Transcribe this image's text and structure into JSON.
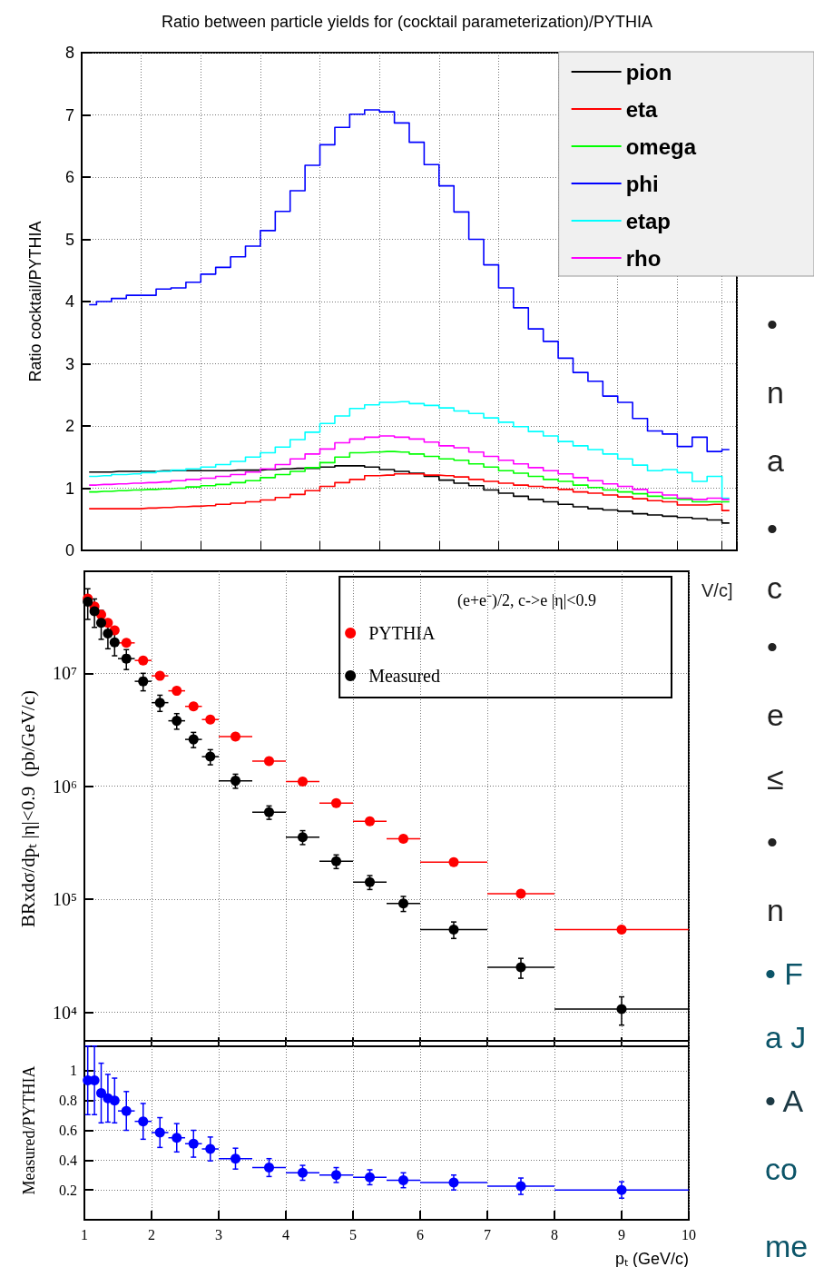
{
  "chart_data": [
    {
      "type": "step",
      "title": "Ratio between particle yields for (cocktail parameterization)/PYTHIA",
      "ylabel": "Ratio cocktail/PYTHIA",
      "categories": [
        null,
        null,
        null,
        null,
        null,
        null,
        null,
        null,
        null,
        null,
        null,
        null,
        null,
        null,
        null,
        null,
        null,
        null,
        null,
        null,
        null,
        null,
        null,
        null,
        null,
        null,
        null,
        null,
        null,
        null,
        null,
        null,
        null,
        null,
        null,
        null,
        null,
        null,
        null,
        null,
        null,
        null,
        null,
        null
      ],
      "ylim": [
        0,
        8
      ],
      "yticks": [
        0,
        1,
        2,
        3,
        4,
        5,
        6,
        7,
        8
      ],
      "grid": true,
      "legend": "top right",
      "tick_labels": "y",
      "marker": "none",
      "series": [
        {
          "name": "pion",
          "color": "#000000",
          "values": [
            1.26,
            1.26,
            1.27,
            1.27,
            1.27,
            1.28,
            1.28,
            1.28,
            1.28,
            1.28,
            1.29,
            1.29,
            1.3,
            1.31,
            1.32,
            1.32,
            1.34,
            1.36,
            1.36,
            1.34,
            1.3,
            1.27,
            1.24,
            1.19,
            1.13,
            1.08,
            1.04,
            0.97,
            0.92,
            0.87,
            0.82,
            0.78,
            0.74,
            0.7,
            0.67,
            0.65,
            0.63,
            0.59,
            0.57,
            0.55,
            0.53,
            0.51,
            0.49,
            0.44
          ]
        },
        {
          "name": "eta",
          "color": "#ff0000",
          "values": [
            0.67,
            0.67,
            0.67,
            0.67,
            0.68,
            0.69,
            0.7,
            0.71,
            0.72,
            0.74,
            0.76,
            0.78,
            0.81,
            0.85,
            0.9,
            0.96,
            1.03,
            1.09,
            1.14,
            1.2,
            1.21,
            1.23,
            1.23,
            1.21,
            1.2,
            1.18,
            1.14,
            1.11,
            1.08,
            1.05,
            1.03,
            1.01,
            0.98,
            0.94,
            0.92,
            0.89,
            0.86,
            0.83,
            0.8,
            0.78,
            0.73,
            0.73,
            0.74,
            0.64
          ]
        },
        {
          "name": "omega",
          "color": "#00ff00",
          "values": [
            0.94,
            0.95,
            0.96,
            0.97,
            0.98,
            0.99,
            1.0,
            1.02,
            1.04,
            1.06,
            1.09,
            1.12,
            1.17,
            1.22,
            1.27,
            1.33,
            1.41,
            1.5,
            1.57,
            1.58,
            1.59,
            1.58,
            1.55,
            1.51,
            1.47,
            1.45,
            1.39,
            1.34,
            1.28,
            1.24,
            1.19,
            1.14,
            1.11,
            1.05,
            1.01,
            0.97,
            0.94,
            0.91,
            0.87,
            0.84,
            0.82,
            0.78,
            0.78,
            0.78
          ]
        },
        {
          "name": "phi",
          "color": "#0000ff",
          "values": [
            3.95,
            4.0,
            4.05,
            4.1,
            4.1,
            4.2,
            4.22,
            4.31,
            4.44,
            4.55,
            4.72,
            4.89,
            5.14,
            5.45,
            5.78,
            6.19,
            6.52,
            6.8,
            7.01,
            7.08,
            7.05,
            6.87,
            6.56,
            6.2,
            5.86,
            5.44,
            5.0,
            4.59,
            4.22,
            3.9,
            3.56,
            3.36,
            3.09,
            2.86,
            2.72,
            2.48,
            2.38,
            2.12,
            1.92,
            1.87,
            1.67,
            1.82,
            1.59,
            1.62
          ]
        },
        {
          "name": "etap",
          "color": "#00ffff",
          "values": [
            1.19,
            1.2,
            1.22,
            1.23,
            1.25,
            1.27,
            1.29,
            1.31,
            1.34,
            1.38,
            1.43,
            1.5,
            1.57,
            1.66,
            1.78,
            1.9,
            2.04,
            2.16,
            2.28,
            2.34,
            2.38,
            2.39,
            2.36,
            2.33,
            2.29,
            2.24,
            2.2,
            2.13,
            2.06,
            1.99,
            1.91,
            1.84,
            1.75,
            1.68,
            1.62,
            1.55,
            1.47,
            1.37,
            1.28,
            1.3,
            1.25,
            1.11,
            1.19,
            0.84
          ]
        },
        {
          "name": "rho",
          "color": "#ff00ff",
          "values": [
            1.05,
            1.06,
            1.07,
            1.08,
            1.09,
            1.1,
            1.12,
            1.14,
            1.16,
            1.19,
            1.22,
            1.26,
            1.31,
            1.38,
            1.47,
            1.55,
            1.63,
            1.73,
            1.79,
            1.82,
            1.84,
            1.82,
            1.79,
            1.74,
            1.68,
            1.65,
            1.58,
            1.51,
            1.45,
            1.39,
            1.33,
            1.28,
            1.23,
            1.17,
            1.12,
            1.07,
            1.03,
            0.98,
            0.93,
            0.89,
            0.84,
            0.82,
            0.84,
            0.82
          ]
        }
      ]
    },
    {
      "type": "scatter",
      "ylabel": "BRxdσ/dpₜ |η|<0.9  (pb/GeV/c)",
      "legend_title": "(e+e⁻)/2, c->e |η|<0.9",
      "xlim": [
        1,
        10
      ],
      "xticks": [
        1,
        2,
        3,
        4,
        5,
        6,
        7,
        8,
        9,
        10
      ],
      "ylim": [
        5000,
        80000000
      ],
      "log": "y",
      "yticks": [
        {
          "value": 10000,
          "label": "10⁴"
        },
        {
          "value": 100000,
          "label": "10⁵"
        },
        {
          "value": 1000000,
          "label": "10⁶"
        },
        {
          "value": 10000000,
          "label": "10⁷"
        }
      ],
      "grid": true,
      "legend": "top right",
      "tick_labels": "y",
      "marker": "circle",
      "series": [
        {
          "name": "PYTHIA",
          "color": "#ff0000",
          "x": [
            1.05,
            1.15,
            1.25,
            1.35,
            1.45,
            1.625,
            1.875,
            2.125,
            2.375,
            2.625,
            2.875,
            3.25,
            3.75,
            4.25,
            4.75,
            5.25,
            5.75,
            6.5,
            7.5,
            9
          ],
          "values": [
            46000000,
            39000000,
            33000000,
            28000000,
            24000000,
            18600000,
            13000000,
            9500000,
            7000000,
            5100000,
            3900000,
            2750000,
            1670000,
            1100000,
            710000,
            490000,
            344000,
            213000,
            112000,
            54000
          ],
          "xerrors": [
            0.05,
            0.05,
            0.05,
            0.05,
            0.05,
            0.125,
            0.125,
            0.125,
            0.125,
            0.125,
            0.125,
            0.25,
            0.25,
            0.25,
            0.25,
            0.25,
            0.25,
            0.5,
            0.5,
            1
          ]
        },
        {
          "name": "Measured",
          "color": "#000000",
          "x": [
            1.05,
            1.15,
            1.25,
            1.35,
            1.45,
            1.625,
            1.875,
            2.125,
            2.375,
            2.625,
            2.875,
            3.25,
            3.75,
            4.25,
            4.75,
            5.25,
            5.75,
            6.5,
            7.5,
            9
          ],
          "values": [
            43000000,
            35500000,
            28000000,
            22500000,
            18800000,
            13500000,
            8500000,
            5500000,
            3800000,
            2600000,
            1830000,
            1120000,
            590000,
            355000,
            217000,
            142000,
            92000,
            54000,
            25000,
            10700
          ],
          "errors": [
            13000000,
            10000000,
            8000000,
            6000000,
            4500000,
            2700000,
            1500000,
            900000,
            600000,
            400000,
            280000,
            160000,
            80000,
            50000,
            30000,
            20000,
            14000,
            9000,
            5000,
            3000
          ],
          "xerrors": [
            0.05,
            0.05,
            0.05,
            0.05,
            0.05,
            0.125,
            0.125,
            0.125,
            0.125,
            0.125,
            0.125,
            0.25,
            0.25,
            0.25,
            0.25,
            0.25,
            0.25,
            0.5,
            0.5,
            1
          ]
        }
      ]
    },
    {
      "type": "scatter",
      "ylabel": "Measured/PYTHIA",
      "xlabel": "pₜ (GeV/c)",
      "xlim": [
        1,
        10
      ],
      "xticks": [
        1,
        2,
        3,
        4,
        5,
        6,
        7,
        8,
        9,
        10
      ],
      "ylim": [
        0,
        1.2
      ],
      "yticks": [
        0.2,
        0.4,
        0.6,
        0.8,
        1
      ],
      "grid": true,
      "marker": "circle",
      "series": [
        {
          "color": "#0000ff",
          "x": [
            1.05,
            1.15,
            1.25,
            1.35,
            1.45,
            1.625,
            1.875,
            2.125,
            2.375,
            2.625,
            2.875,
            3.25,
            3.75,
            4.25,
            4.75,
            5.25,
            5.75,
            6.5,
            7.5,
            9
          ],
          "values": [
            0.935,
            0.935,
            0.85,
            0.815,
            0.8,
            0.73,
            0.66,
            0.585,
            0.55,
            0.51,
            0.475,
            0.41,
            0.35,
            0.315,
            0.3,
            0.285,
            0.265,
            0.25,
            0.225,
            0.2
          ],
          "errors": [
            0.23,
            0.23,
            0.2,
            0.16,
            0.15,
            0.13,
            0.12,
            0.1,
            0.095,
            0.09,
            0.08,
            0.07,
            0.06,
            0.05,
            0.05,
            0.05,
            0.05,
            0.05,
            0.055,
            0.055
          ],
          "xerrors": [
            0.05,
            0.05,
            0.05,
            0.05,
            0.05,
            0.125,
            0.125,
            0.125,
            0.125,
            0.125,
            0.125,
            0.25,
            0.25,
            0.25,
            0.25,
            0.25,
            0.25,
            0.5,
            0.5,
            1
          ]
        }
      ]
    },
    {
      "type": "other",
      "annotations": [
        "V/c]",
        "•",
        "n",
        "a",
        "•",
        "c",
        "•",
        "e",
        "≤",
        "•",
        "n",
        "• F",
        "a J",
        "• A",
        "co",
        "me"
      ]
    }
  ]
}
